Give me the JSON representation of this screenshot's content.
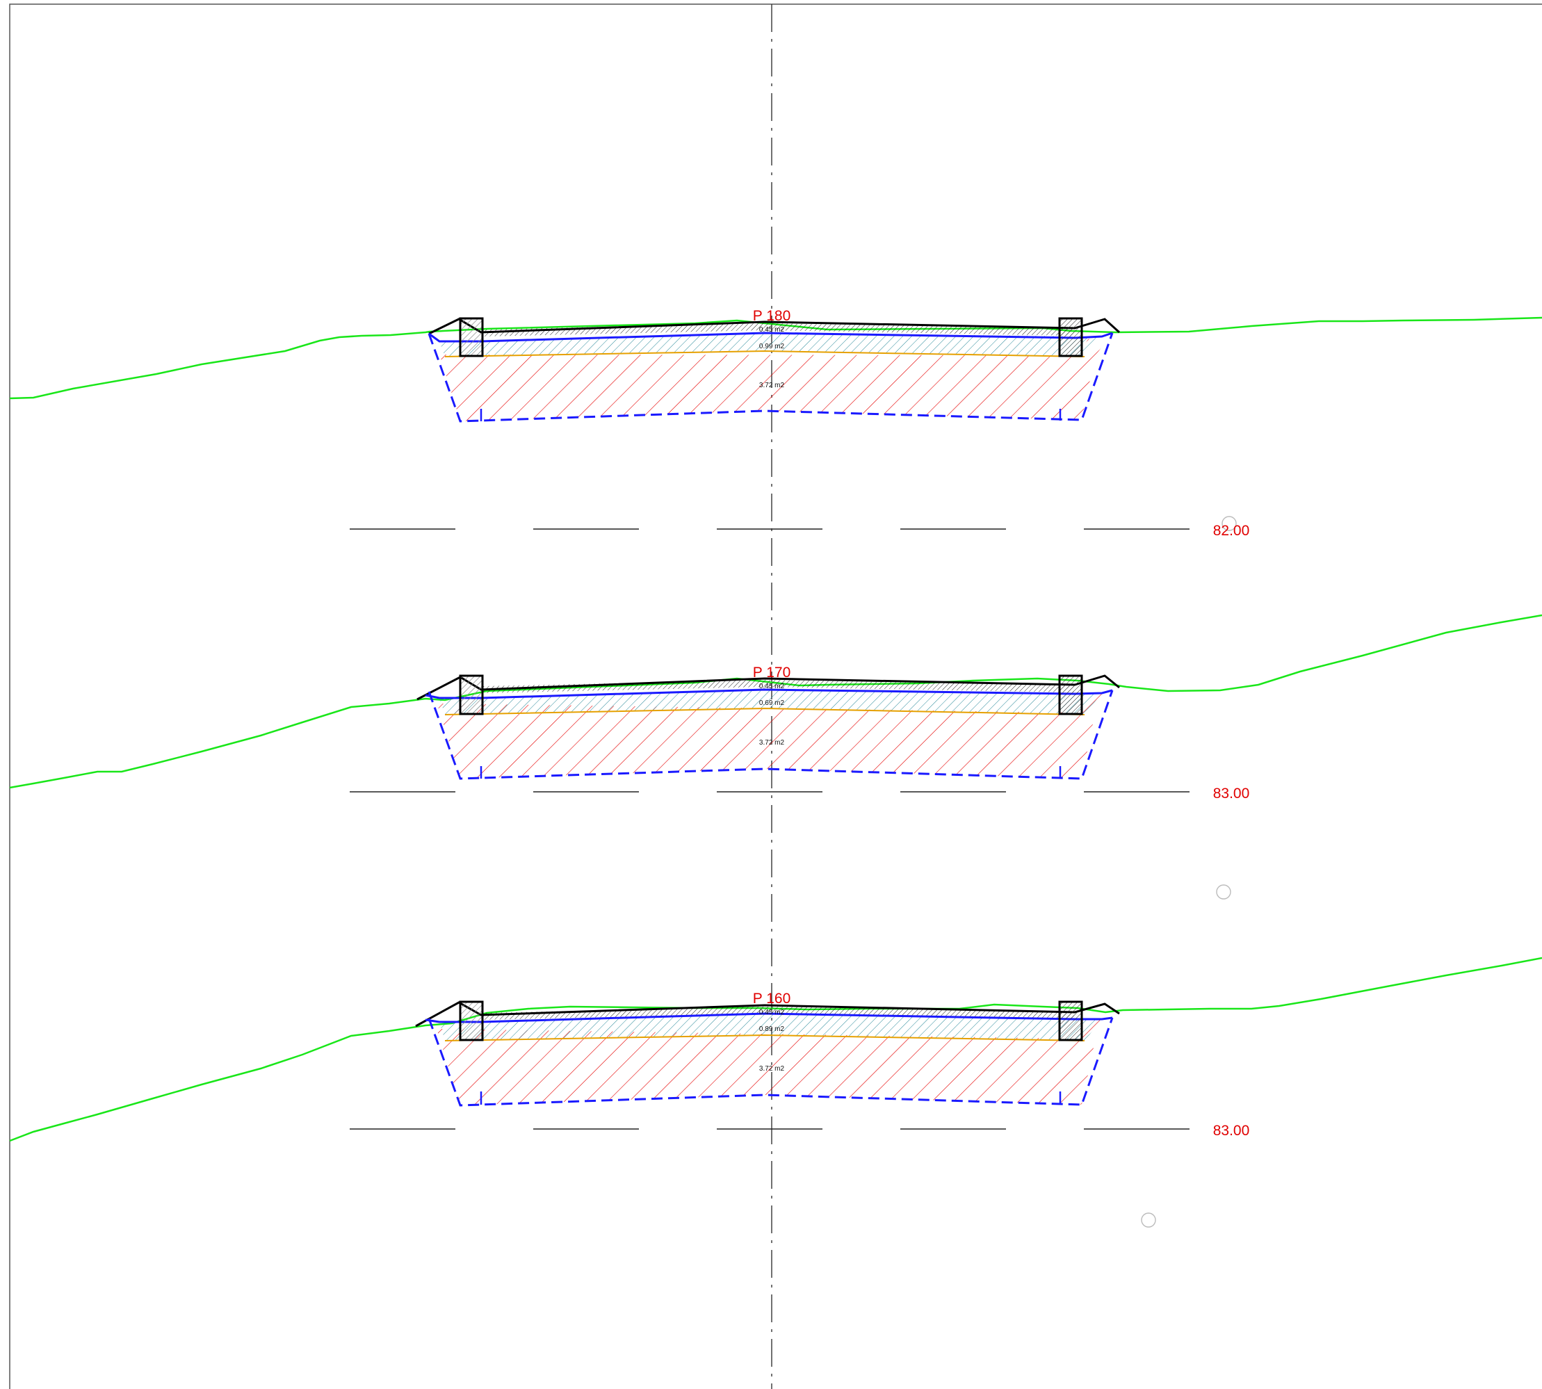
{
  "drawing": {
    "colors": {
      "ground_line": "#19e619",
      "label_red": "#e00000",
      "structure_blue": "#1a1aff",
      "cut_hatch_red": "#e60000",
      "layer_hatch_teal": "#2a8a9a",
      "layer_top_hatch": "#222222",
      "subgrade_orange": "#e6a000",
      "datum_line": "#222222",
      "axis_line": "#333333"
    },
    "sections": [
      {
        "station": "P 180",
        "datum_elevation": "82.00",
        "areas": {
          "top_layer": "0.45 m2",
          "base_layer": "0.99 m2",
          "excavation": "3.72 m2"
        }
      },
      {
        "station": "P 170",
        "datum_elevation": "83.00",
        "areas": {
          "top_layer": "0.45 m2",
          "base_layer": "0.69 m2",
          "excavation": "3.72 m2"
        }
      },
      {
        "station": "P 160",
        "datum_elevation": "83.00",
        "areas": {
          "top_layer": "0.45 m2",
          "base_layer": "0.89 m2",
          "excavation": "3.72 m2"
        }
      }
    ]
  }
}
